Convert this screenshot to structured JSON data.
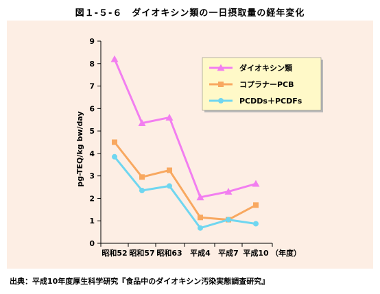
{
  "figure": {
    "title": "図１-５-６　ダイオキシン類の一日摂取量の経年変化",
    "source": "出典：平成10年度厚生科学研究『食品中のダイオキシン汚染実態調査研究』"
  },
  "chart_data": {
    "type": "line",
    "title": "図１-５-６　ダイオキシン類の一日摂取量の経年変化",
    "xlabel": "",
    "ylabel": "pg-TEQ/kg bw/day",
    "x_unit_label": "（年度）",
    "categories": [
      "昭和52",
      "昭和57",
      "昭和63",
      "平成4",
      "平成7",
      "平成10"
    ],
    "ylim": [
      0,
      9
    ],
    "yticks": [
      0,
      1,
      2,
      3,
      4,
      5,
      6,
      7,
      8,
      9
    ],
    "grid": false,
    "legend_position": "top-right",
    "series": [
      {
        "name": "ダイオキシン類",
        "marker": "triangle",
        "color": "#f27ef0",
        "values": [
          8.2,
          5.35,
          5.6,
          2.05,
          2.3,
          2.65
        ]
      },
      {
        "name": "コプラナーPCB",
        "marker": "square",
        "color": "#f8a860",
        "values": [
          4.5,
          2.95,
          3.25,
          1.15,
          1.05,
          1.7
        ]
      },
      {
        "name": "PCDDs＋PCDFs",
        "marker": "circle",
        "color": "#6fd6f0",
        "values": [
          3.85,
          2.35,
          2.55,
          0.68,
          1.05,
          0.87
        ]
      }
    ]
  }
}
